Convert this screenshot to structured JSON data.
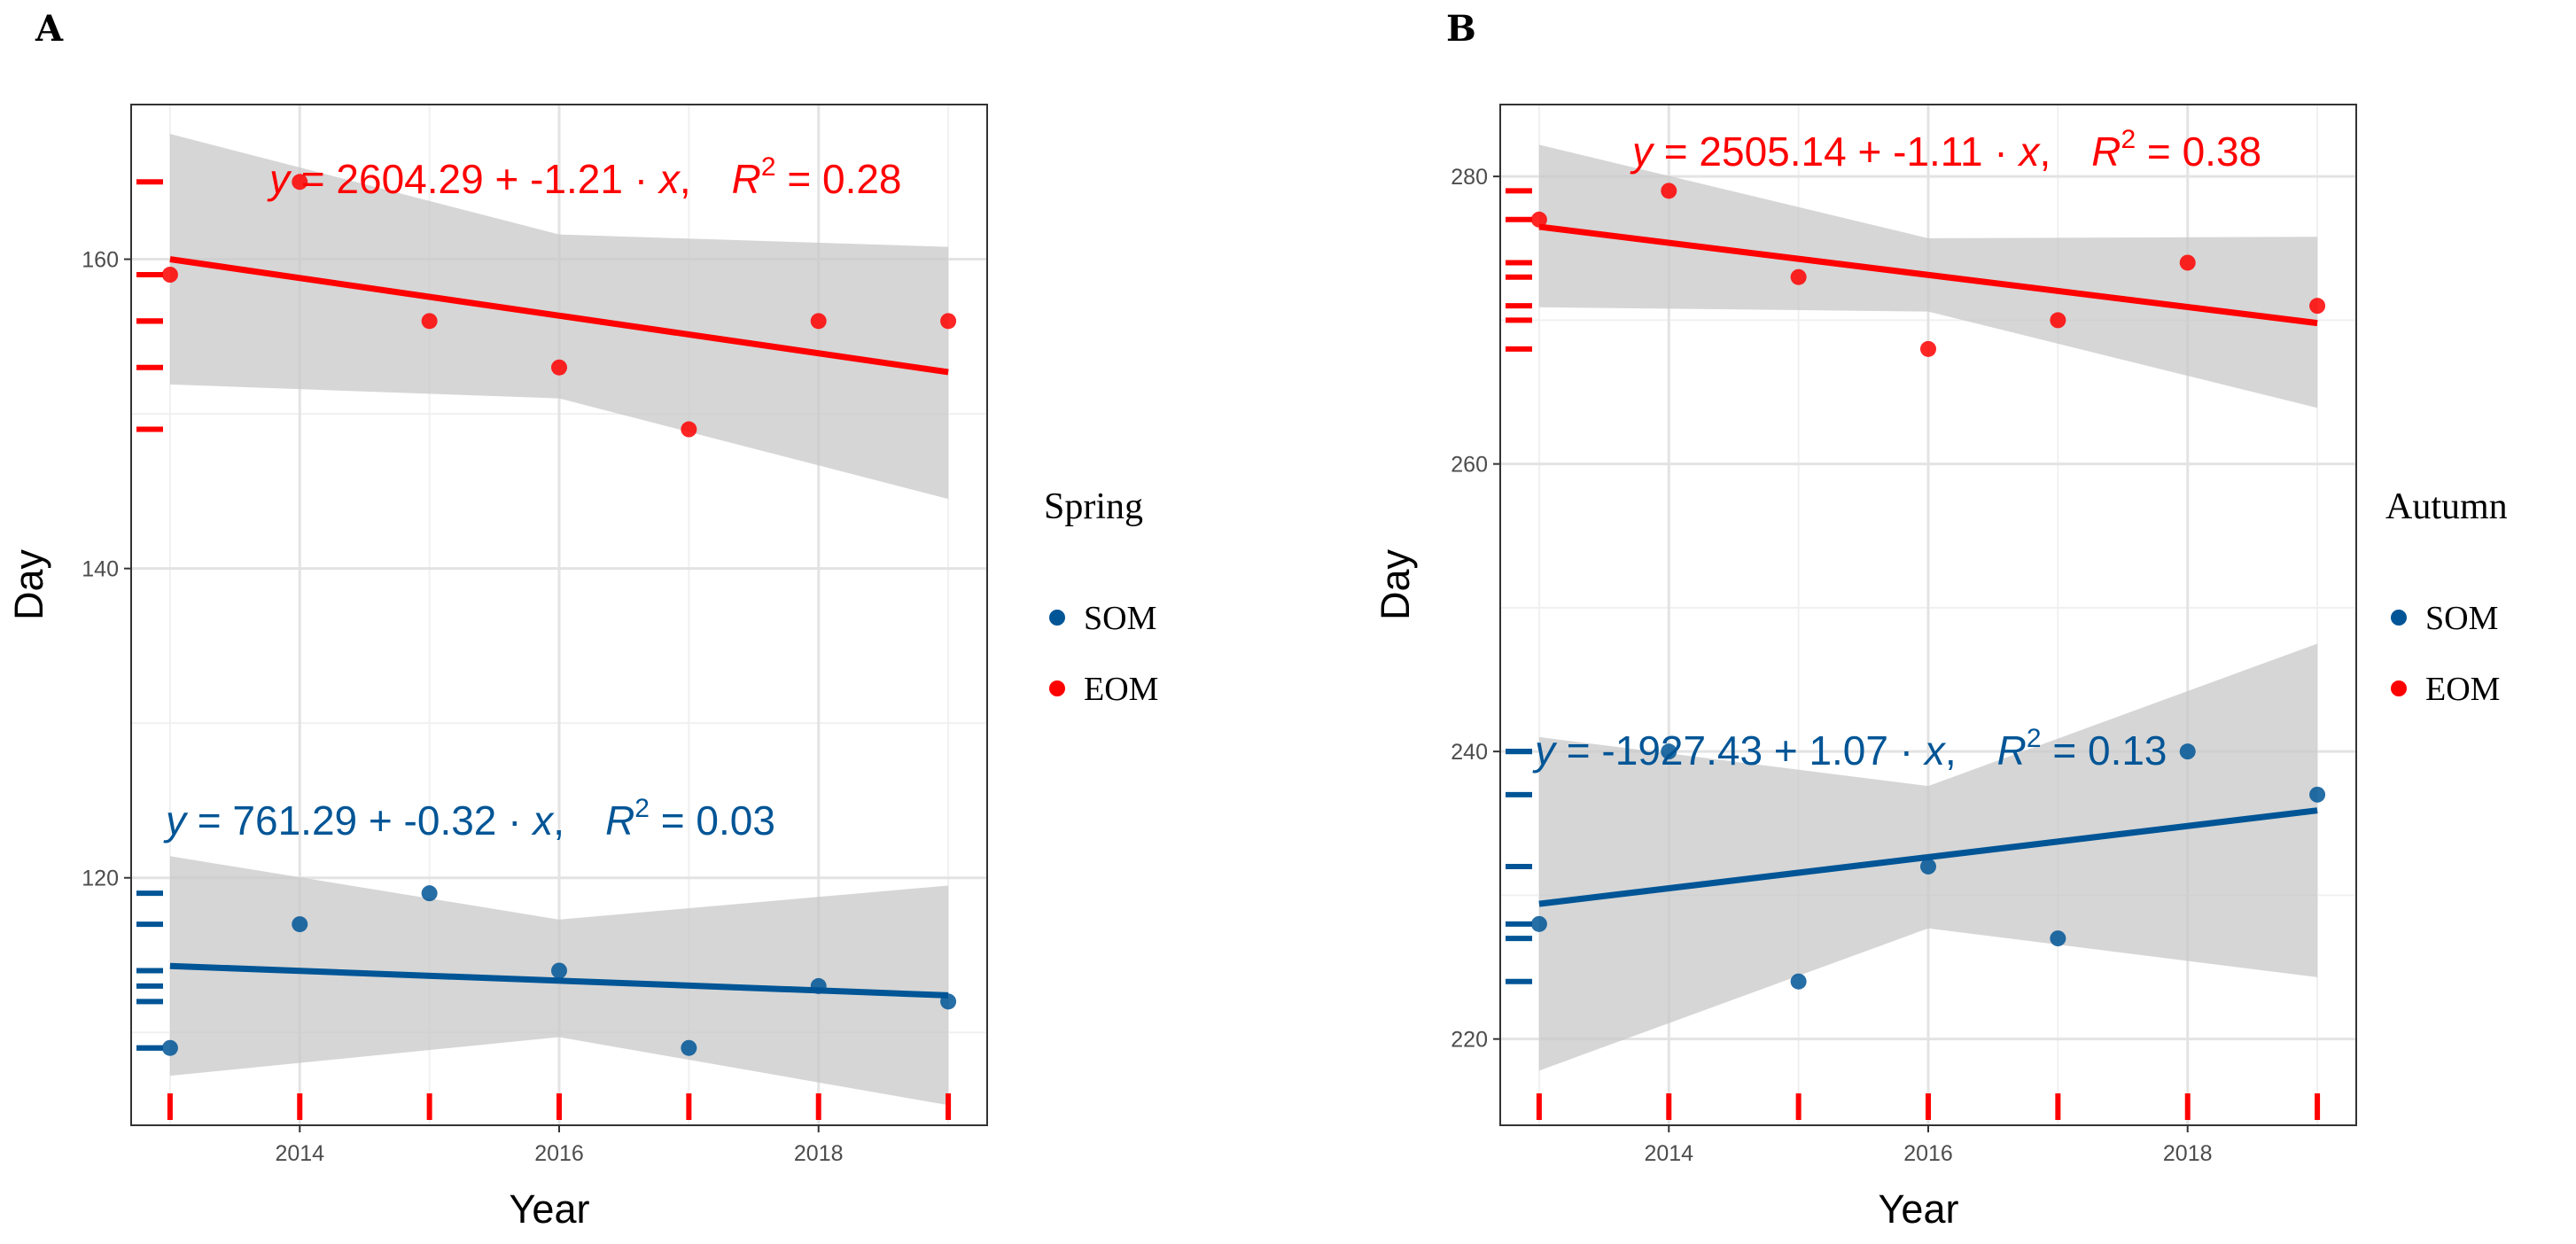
{
  "chart_data": [
    {
      "panel_label": "A",
      "type": "scatter",
      "xlabel": "Year",
      "ylabel": "Day",
      "xlim": [
        2012.7,
        2019.3
      ],
      "ylim": [
        104,
        170
      ],
      "xticks": [
        2014,
        2016,
        2018
      ],
      "yticks": [
        120,
        140,
        160
      ],
      "grid": true,
      "legend": {
        "title": "Spring",
        "placement": "right",
        "entries": [
          "SOM",
          "EOM"
        ]
      },
      "series": [
        {
          "name": "SOM",
          "color": "#005596",
          "x": [
            2013,
            2014,
            2015,
            2016,
            2017,
            2018,
            2019
          ],
          "y": [
            109,
            117,
            119,
            114,
            109,
            113,
            112
          ],
          "fit": {
            "intercept": 761.29,
            "slope": -0.32,
            "r2": 0.03,
            "line_y": [
              114.3,
              112.4
            ],
            "band": {
              "x": [
                2013,
                2016,
                2019
              ],
              "lower": [
                107.2,
                109.7,
                105.3
              ],
              "upper": [
                121.4,
                117.3,
                119.5
              ]
            }
          },
          "equation": {
            "y": "y",
            "eq": " = 761.29 + -0.32 · ",
            "x": "x",
            "r": "R",
            "sup": "2",
            "rest": " = 0.03"
          }
        },
        {
          "name": "EOM",
          "color": "#ff0000",
          "x": [
            2013,
            2014,
            2015,
            2016,
            2017,
            2018,
            2019
          ],
          "y": [
            159,
            165,
            156,
            153,
            149,
            156,
            156
          ],
          "fit": {
            "intercept": 2604.29,
            "slope": -1.21,
            "r2": 0.28,
            "line_y": [
              160.0,
              152.7
            ],
            "band": {
              "x": [
                2013,
                2016,
                2019
              ],
              "lower": [
                151.9,
                151.0,
                144.5
              ],
              "upper": [
                168.1,
                161.6,
                160.8
              ]
            }
          },
          "equation": {
            "y": "y",
            "eq": " = 2604.29 + -1.21 · ",
            "x": "x",
            "r": "R",
            "sup": "2",
            "rest": " = 0.28"
          }
        }
      ]
    },
    {
      "panel_label": "B",
      "type": "scatter",
      "xlabel": "Year",
      "ylabel": "Day",
      "xlim": [
        2012.7,
        2019.3
      ],
      "ylim": [
        214,
        285
      ],
      "xticks": [
        2014,
        2016,
        2018
      ],
      "yticks": [
        220,
        240,
        260,
        280
      ],
      "grid": true,
      "legend": {
        "title": "Autumn",
        "placement": "right",
        "entries": [
          "SOM",
          "EOM"
        ]
      },
      "series": [
        {
          "name": "SOM",
          "color": "#005596",
          "x": [
            2013,
            2014,
            2015,
            2016,
            2017,
            2018,
            2019
          ],
          "y": [
            228,
            240,
            224,
            232,
            227,
            240,
            237
          ],
          "fit": {
            "intercept": -1927.43,
            "slope": 1.07,
            "r2": 0.13,
            "line_y": [
              229.4,
              235.9
            ],
            "band": {
              "x": [
                2013,
                2016,
                2019
              ],
              "lower": [
                217.8,
                227.7,
                224.3
              ],
              "upper": [
                241.0,
                237.6,
                247.5
              ]
            }
          },
          "equation": {
            "y": "y",
            "eq": " = -1927.43 + 1.07 · ",
            "x": "x",
            "r": "R",
            "sup": "2",
            "rest": " = 0.13"
          }
        },
        {
          "name": "EOM",
          "color": "#ff0000",
          "x": [
            2013,
            2014,
            2015,
            2016,
            2017,
            2018,
            2019
          ],
          "y": [
            277,
            279,
            273,
            268,
            270,
            274,
            271
          ],
          "fit": {
            "intercept": 2505.14,
            "slope": -1.11,
            "r2": 0.38,
            "line_y": [
              276.5,
              269.8
            ],
            "band": {
              "x": [
                2013,
                2016,
                2019
              ],
              "lower": [
                270.9,
                270.6,
                263.9
              ],
              "upper": [
                282.2,
                275.7,
                275.8
              ]
            }
          },
          "equation": {
            "y": "y",
            "eq": " = 2505.14 + -1.11 · ",
            "x": "x",
            "r": "R",
            "sup": "2",
            "rest": " = 0.38"
          }
        }
      ]
    }
  ]
}
